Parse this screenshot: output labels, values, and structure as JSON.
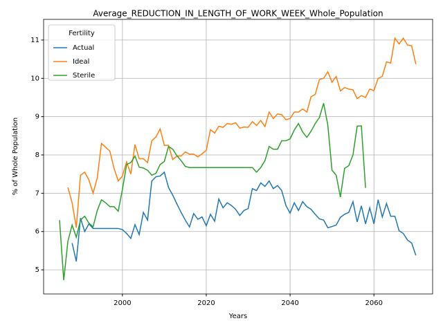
{
  "chart_data": {
    "type": "line",
    "title": "Average_REDUCTION_IN_LENGTH_OF_WORK_WEEK_Whole_Population",
    "xlabel": "Years",
    "ylabel": "% of Whole Population",
    "legend_title": "Fertility",
    "legend_loc": "upper left",
    "grid": true,
    "x": [
      1985,
      1986,
      1987,
      1988,
      1989,
      1990,
      1991,
      1992,
      1993,
      1994,
      1995,
      1996,
      1997,
      1998,
      1999,
      2000,
      2001,
      2002,
      2003,
      2004,
      2005,
      2006,
      2007,
      2008,
      2009,
      2010,
      2011,
      2012,
      2013,
      2014,
      2015,
      2016,
      2017,
      2018,
      2019,
      2020,
      2021,
      2022,
      2023,
      2024,
      2025,
      2026,
      2027,
      2028,
      2029,
      2030,
      2031,
      2032,
      2033,
      2034,
      2035,
      2036,
      2037,
      2038,
      2039,
      2040,
      2041,
      2042,
      2043,
      2044,
      2045,
      2046,
      2047,
      2048,
      2049,
      2050,
      2051,
      2052,
      2053,
      2054,
      2055,
      2056,
      2057,
      2058,
      2059,
      2060,
      2061,
      2062,
      2063,
      2064,
      2065,
      2066,
      2067,
      2068,
      2069,
      2070
    ],
    "series": [
      {
        "name": "Actual",
        "color": "#1f77b4",
        "values": [
          null,
          null,
          null,
          5.7,
          5.22,
          6.35,
          6.0,
          6.2,
          6.08,
          6.08,
          6.08,
          6.08,
          6.08,
          6.08,
          6.08,
          6.05,
          5.95,
          5.82,
          6.18,
          5.92,
          6.5,
          6.3,
          7.32,
          7.43,
          7.45,
          7.55,
          7.15,
          6.95,
          6.72,
          6.5,
          6.3,
          6.12,
          6.47,
          6.32,
          6.38,
          6.15,
          6.45,
          6.27,
          6.85,
          6.62,
          6.75,
          6.68,
          6.58,
          6.42,
          6.55,
          6.6,
          7.12,
          7.07,
          7.27,
          7.18,
          7.32,
          7.12,
          7.2,
          7.07,
          6.68,
          6.48,
          6.75,
          6.55,
          6.78,
          6.65,
          6.58,
          6.45,
          6.33,
          6.3,
          6.1,
          6.13,
          6.17,
          6.37,
          6.45,
          6.5,
          6.78,
          6.25,
          6.67,
          6.2,
          6.62,
          6.2,
          6.83,
          6.38,
          6.73,
          6.4,
          6.4,
          6.02,
          5.95,
          5.78,
          5.7,
          5.38
        ]
      },
      {
        "name": "Ideal",
        "color": "#ff7f0e",
        "values": [
          null,
          null,
          7.15,
          6.75,
          6.1,
          7.47,
          7.55,
          7.35,
          7.0,
          7.4,
          8.3,
          8.2,
          8.1,
          7.65,
          7.32,
          7.45,
          7.82,
          7.5,
          8.27,
          7.9,
          7.9,
          7.8,
          8.37,
          8.47,
          8.68,
          8.25,
          8.25,
          7.88,
          7.97,
          7.97,
          8.08,
          8.02,
          8.02,
          7.95,
          8.03,
          8.12,
          8.66,
          8.57,
          8.75,
          8.72,
          8.82,
          8.8,
          8.84,
          8.7,
          8.73,
          8.72,
          8.87,
          8.77,
          8.9,
          8.74,
          9.12,
          8.95,
          9.07,
          9.05,
          8.92,
          8.95,
          9.12,
          9.12,
          9.2,
          9.12,
          9.52,
          9.58,
          9.97,
          10.0,
          10.17,
          9.9,
          10.05,
          9.67,
          9.76,
          9.72,
          9.7,
          9.47,
          9.55,
          9.5,
          9.72,
          9.68,
          10.0,
          10.05,
          10.43,
          10.4,
          11.05,
          10.9,
          11.05,
          10.87,
          10.85,
          10.37
        ]
      },
      {
        "name": "Sterile",
        "color": "#2ca02c",
        "values": [
          6.3,
          4.73,
          5.75,
          6.17,
          5.85,
          6.3,
          6.4,
          6.22,
          6.12,
          6.55,
          6.83,
          6.75,
          6.65,
          6.65,
          6.53,
          7.1,
          7.75,
          7.8,
          7.97,
          7.68,
          7.66,
          7.6,
          7.47,
          7.52,
          7.75,
          7.83,
          8.22,
          8.15,
          7.98,
          7.85,
          7.7,
          7.67,
          7.67,
          7.67,
          7.67,
          7.67,
          7.67,
          7.67,
          7.67,
          7.67,
          7.67,
          7.67,
          7.67,
          7.67,
          7.67,
          7.67,
          7.67,
          7.55,
          7.67,
          7.85,
          8.22,
          8.15,
          8.15,
          8.37,
          8.37,
          8.42,
          8.65,
          8.82,
          8.6,
          8.46,
          8.62,
          8.82,
          8.98,
          9.35,
          8.78,
          7.6,
          7.47,
          6.9,
          7.65,
          7.72,
          8.0,
          8.75,
          8.76,
          7.14,
          null,
          null,
          null,
          null,
          null,
          null,
          null,
          null,
          null,
          null,
          null,
          null
        ]
      }
    ],
    "xlim": [
      1981.2,
      2074
    ],
    "xticks": [
      2000,
      2020,
      2040,
      2060
    ],
    "ylim": [
      4.37,
      11.54
    ],
    "yticks": [
      5,
      6,
      7,
      8,
      9,
      10,
      11
    ]
  }
}
